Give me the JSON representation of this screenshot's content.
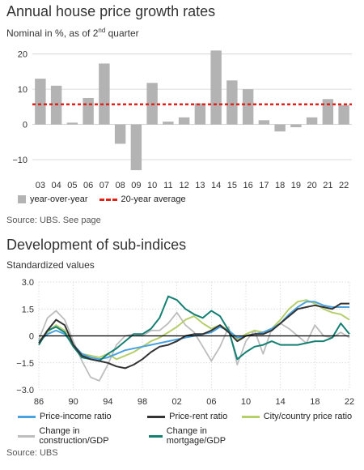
{
  "chart1": {
    "title": "Annual house price growth rates",
    "subtitle_main": "Nominal in %, as of 2",
    "subtitle_sup": "nd",
    "subtitle_end": " quarter",
    "source": "Source: UBS. See page",
    "legend_bar": "year-over-year",
    "legend_avg": "20-year average",
    "colors": {
      "bar": "#b3b3b3",
      "avg": "#e32119"
    }
  },
  "chart2": {
    "title": "Development of sub-indices",
    "subtitle": "Standardized values",
    "source": "Source: UBS",
    "legend": [
      {
        "name": "Price-income ratio",
        "color": "#4aa3df"
      },
      {
        "name": "Price-rent ratio",
        "color": "#333333"
      },
      {
        "name": "City/country price ratio",
        "color": "#b5cf6b"
      },
      {
        "name": "Change in construction/GDP",
        "color": "#bdbdbd"
      },
      {
        "name": "Change in mortgage/GDP",
        "color": "#138073"
      }
    ]
  },
  "chart_data": [
    {
      "type": "bar",
      "categories": [
        "03",
        "04",
        "05",
        "06",
        "07",
        "08",
        "09",
        "10",
        "11",
        "12",
        "13",
        "14",
        "15",
        "16",
        "17",
        "18",
        "19",
        "20",
        "21",
        "22"
      ],
      "series": [
        {
          "name": "year-over-year",
          "values": [
            13,
            11,
            0.5,
            7.5,
            17.3,
            -5.5,
            -13,
            11.8,
            0.8,
            2,
            6,
            21,
            12.5,
            10,
            1.2,
            -2,
            -0.8,
            2,
            7.2,
            5.5
          ]
        },
        {
          "name": "20-year average",
          "values": [
            5.7,
            5.7,
            5.7,
            5.7,
            5.7,
            5.7,
            5.7,
            5.7,
            5.7,
            5.7,
            5.7,
            5.7,
            5.7,
            5.7,
            5.7,
            5.7,
            5.7,
            5.7,
            5.7,
            5.7
          ]
        }
      ],
      "ylim": [
        -13,
        22
      ],
      "yticks": [
        20,
        10,
        0,
        -10
      ],
      "grid": true,
      "legend_placement": "bottom"
    },
    {
      "type": "line",
      "x_ticks": [
        "86",
        "90",
        "94",
        "98",
        "02",
        "06",
        "10",
        "14",
        "18",
        "22"
      ],
      "x_tick_values": [
        1986,
        1990,
        1994,
        1998,
        2002,
        2006,
        2010,
        2014,
        2018,
        2022
      ],
      "ylim": [
        -3.0,
        3.0
      ],
      "yticks": [
        "3.0",
        "1.5",
        "0",
        "-1.5",
        "-3.0"
      ],
      "grid": true,
      "legend_placement": "bottom",
      "series": [
        {
          "name": "Price-income ratio",
          "x": [
            1986,
            1987,
            1988,
            1989,
            1990,
            1991,
            1992,
            1993,
            1994,
            1995,
            1996,
            1997,
            1998,
            1999,
            2000,
            2001,
            2002,
            2003,
            2004,
            2005,
            2006,
            2007,
            2008,
            2009,
            2010,
            2011,
            2012,
            2013,
            2014,
            2015,
            2016,
            2017,
            2018,
            2019,
            2020,
            2021,
            2022
          ],
          "y": [
            -0.3,
            0.1,
            0.3,
            0.1,
            -0.5,
            -1.0,
            -1.2,
            -1.3,
            -1.2,
            -1.0,
            -0.8,
            -0.7,
            -0.6,
            -0.5,
            -0.4,
            -0.3,
            -0.2,
            -0.1,
            0.0,
            0.1,
            0.2,
            0.5,
            0.3,
            -0.1,
            0.0,
            0.1,
            0.2,
            0.4,
            0.7,
            1.2,
            1.6,
            1.9,
            1.9,
            1.7,
            1.6,
            1.6,
            1.6
          ]
        },
        {
          "name": "Price-rent ratio",
          "x": [
            1986,
            1987,
            1988,
            1989,
            1990,
            1991,
            1992,
            1993,
            1994,
            1995,
            1996,
            1997,
            1998,
            1999,
            2000,
            2001,
            2002,
            2003,
            2004,
            2005,
            2006,
            2007,
            2008,
            2009,
            2010,
            2011,
            2012,
            2013,
            2014,
            2015,
            2016,
            2017,
            2018,
            2019,
            2020,
            2021,
            2022
          ],
          "y": [
            -0.4,
            0.3,
            0.9,
            0.6,
            -0.5,
            -1.1,
            -1.3,
            -1.4,
            -1.5,
            -1.7,
            -1.8,
            -1.6,
            -1.3,
            -0.9,
            -0.6,
            -0.5,
            -0.3,
            0.0,
            0.1,
            0.1,
            0.3,
            0.6,
            0.2,
            -0.3,
            0.0,
            0.1,
            0.1,
            0.3,
            0.7,
            1.1,
            1.5,
            1.6,
            1.7,
            1.6,
            1.5,
            1.8,
            1.8
          ]
        },
        {
          "name": "City/country price ratio",
          "x": [
            1986,
            1987,
            1988,
            1989,
            1990,
            1991,
            1992,
            1993,
            1994,
            1995,
            1996,
            1997,
            1998,
            1999,
            2000,
            2001,
            2002,
            2003,
            2004,
            2005,
            2006,
            2007,
            2008,
            2009,
            2010,
            2011,
            2012,
            2013,
            2014,
            2015,
            2016,
            2017,
            2018,
            2019,
            2020,
            2021,
            2022
          ],
          "y": [
            -0.3,
            0.2,
            0.6,
            0.3,
            -0.6,
            -1.0,
            -1.1,
            -1.2,
            -1.0,
            -1.3,
            -1.1,
            -0.9,
            -0.6,
            -0.3,
            -0.1,
            0.2,
            0.5,
            0.9,
            1.1,
            0.7,
            0.4,
            0.6,
            0.3,
            -0.2,
            0.1,
            0.3,
            0.2,
            0.4,
            0.9,
            1.5,
            1.9,
            2.0,
            1.8,
            1.5,
            1.3,
            1.2,
            0.9
          ]
        },
        {
          "name": "Change in construction/GDP",
          "x": [
            1986,
            1987,
            1988,
            1989,
            1990,
            1991,
            1992,
            1993,
            1994,
            1995,
            1996,
            1997,
            1998,
            1999,
            2000,
            2001,
            2002,
            2003,
            2004,
            2005,
            2006,
            2007,
            2008,
            2009,
            2010,
            2011,
            2012,
            2013,
            2014,
            2015,
            2016,
            2017,
            2018,
            2019,
            2020,
            2021,
            2022
          ],
          "y": [
            -0.2,
            1.0,
            1.4,
            0.9,
            -0.3,
            -1.4,
            -2.3,
            -2.5,
            -1.6,
            -0.5,
            0.0,
            0.1,
            0.0,
            0.3,
            0.3,
            0.7,
            1.3,
            0.6,
            0.2,
            -0.6,
            -1.4,
            -0.6,
            0.5,
            -1.6,
            -0.3,
            0.3,
            -1.0,
            0.4,
            0.7,
            0.4,
            0.0,
            -0.4,
            0.6,
            0.0,
            -0.1,
            0.2,
            -0.1
          ]
        },
        {
          "name": "Change in mortgage/GDP",
          "x": [
            1986,
            1987,
            1988,
            1989,
            1990,
            1991,
            1992,
            1993,
            1994,
            1995,
            1996,
            1997,
            1998,
            1999,
            2000,
            2001,
            2002,
            2003,
            2004,
            2005,
            2006,
            2007,
            2008,
            2009,
            2010,
            2011,
            2012,
            2013,
            2014,
            2015,
            2016,
            2017,
            2018,
            2019,
            2020,
            2021,
            2022
          ],
          "y": [
            -0.5,
            0.3,
            0.5,
            0.2,
            -0.6,
            -1.2,
            -1.3,
            -1.4,
            -1.0,
            -0.7,
            -0.3,
            0.1,
            0.1,
            0.4,
            1.0,
            2.2,
            2.0,
            1.5,
            1.2,
            1.0,
            1.4,
            1.1,
            0.3,
            -1.3,
            -0.9,
            -0.6,
            -0.5,
            -0.3,
            -0.5,
            -0.5,
            -0.5,
            -0.4,
            -0.3,
            -0.3,
            -0.1,
            0.7,
            0.1
          ]
        }
      ]
    }
  ]
}
